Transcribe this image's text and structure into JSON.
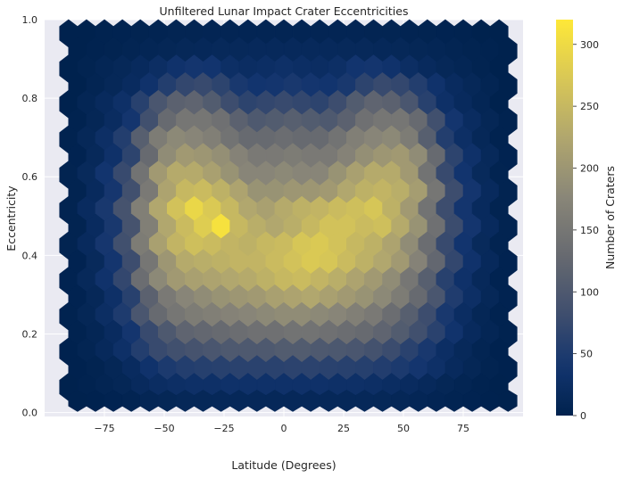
{
  "chart_data": {
    "type": "heatmap",
    "subtype": "hexbin",
    "title": "Unfiltered Lunar Impact Crater Eccentricities",
    "xlabel": "Latitude (Degrees)",
    "ylabel": "Eccentricity",
    "colorbar_label": "Number of Craters",
    "colormap": "cividis",
    "xlim": [
      -100,
      100
    ],
    "ylim": [
      -0.01,
      1.0
    ],
    "xticks": [
      -75,
      -50,
      -25,
      0,
      25,
      50,
      75
    ],
    "yticks": [
      0.0,
      0.2,
      0.4,
      0.6,
      0.8,
      1.0
    ],
    "ytick_labels": [
      "0.0",
      "0.2",
      "0.4",
      "0.6",
      "0.8",
      "1.0"
    ],
    "colorbar_range": [
      0,
      320
    ],
    "colorbar_ticks": [
      0,
      50,
      100,
      150,
      200,
      250,
      300
    ],
    "grid": true,
    "background": "#eaeaf2",
    "hex_data": {
      "x_centers": [
        -90,
        -82.5,
        -75,
        -67.5,
        -60,
        -52.5,
        -45,
        -37.5,
        -30,
        -22.5,
        -15,
        -7.5,
        0,
        7.5,
        15,
        22.5,
        30,
        37.5,
        45,
        52.5,
        60,
        67.5,
        75,
        82.5,
        90
      ],
      "y_centers": [
        0.965,
        0.92,
        0.875,
        0.83,
        0.785,
        0.74,
        0.695,
        0.65,
        0.605,
        0.56,
        0.515,
        0.47,
        0.425,
        0.38,
        0.335,
        0.29,
        0.245,
        0.2,
        0.155,
        0.11,
        0.065,
        0.03
      ],
      "counts": [
        [
          0,
          0,
          2,
          3,
          4,
          5,
          6,
          6,
          7,
          7,
          7,
          7,
          7,
          7,
          7,
          7,
          7,
          6,
          6,
          5,
          4,
          3,
          2,
          0,
          0
        ],
        [
          0,
          2,
          4,
          6,
          8,
          10,
          12,
          13,
          14,
          14,
          15,
          15,
          15,
          15,
          15,
          14,
          14,
          13,
          12,
          10,
          8,
          6,
          4,
          2,
          0
        ],
        [
          0,
          4,
          8,
          12,
          18,
          25,
          35,
          40,
          38,
          28,
          24,
          26,
          30,
          26,
          24,
          28,
          38,
          40,
          35,
          25,
          18,
          12,
          8,
          4,
          0
        ],
        [
          0,
          6,
          12,
          20,
          35,
          55,
          70,
          75,
          65,
          45,
          38,
          40,
          45,
          40,
          38,
          45,
          65,
          75,
          70,
          55,
          35,
          20,
          12,
          6,
          0
        ],
        [
          0,
          8,
          18,
          30,
          60,
          95,
          115,
          120,
          105,
          80,
          65,
          70,
          75,
          70,
          65,
          80,
          105,
          120,
          115,
          95,
          60,
          30,
          18,
          8,
          0
        ],
        [
          2,
          10,
          22,
          40,
          85,
          130,
          150,
          150,
          140,
          115,
          100,
          105,
          110,
          105,
          100,
          115,
          140,
          150,
          150,
          130,
          85,
          40,
          22,
          10,
          2
        ],
        [
          2,
          12,
          28,
          55,
          110,
          160,
          180,
          175,
          165,
          145,
          130,
          130,
          135,
          130,
          130,
          145,
          165,
          175,
          180,
          160,
          110,
          55,
          28,
          12,
          2
        ],
        [
          3,
          14,
          32,
          65,
          130,
          185,
          205,
          200,
          190,
          170,
          155,
          155,
          160,
          155,
          155,
          170,
          190,
          200,
          205,
          185,
          130,
          65,
          32,
          14,
          3
        ],
        [
          4,
          16,
          38,
          75,
          145,
          205,
          230,
          230,
          215,
          195,
          175,
          175,
          180,
          175,
          175,
          195,
          215,
          230,
          230,
          205,
          145,
          75,
          38,
          16,
          4
        ],
        [
          4,
          18,
          42,
          85,
          155,
          220,
          250,
          255,
          240,
          220,
          195,
          195,
          200,
          200,
          205,
          225,
          240,
          245,
          235,
          210,
          150,
          80,
          40,
          18,
          4
        ],
        [
          4,
          20,
          45,
          90,
          165,
          225,
          265,
          295,
          275,
          250,
          225,
          215,
          230,
          240,
          245,
          255,
          260,
          270,
          240,
          205,
          145,
          80,
          40,
          18,
          4
        ],
        [
          4,
          20,
          45,
          90,
          165,
          225,
          255,
          280,
          310,
          250,
          235,
          225,
          235,
          250,
          265,
          265,
          255,
          260,
          230,
          195,
          140,
          78,
          40,
          18,
          4
        ],
        [
          4,
          18,
          42,
          85,
          160,
          215,
          245,
          260,
          255,
          245,
          240,
          250,
          255,
          270,
          275,
          265,
          250,
          240,
          220,
          185,
          135,
          75,
          38,
          16,
          4
        ],
        [
          3,
          16,
          40,
          80,
          150,
          200,
          230,
          235,
          240,
          245,
          245,
          255,
          265,
          275,
          270,
          255,
          240,
          225,
          205,
          170,
          125,
          70,
          35,
          15,
          3
        ],
        [
          3,
          14,
          35,
          70,
          135,
          180,
          205,
          215,
          220,
          225,
          230,
          240,
          250,
          255,
          245,
          235,
          220,
          205,
          185,
          150,
          110,
          60,
          32,
          14,
          3
        ],
        [
          3,
          12,
          30,
          60,
          115,
          155,
          175,
          185,
          195,
          200,
          205,
          215,
          220,
          225,
          215,
          205,
          195,
          180,
          160,
          130,
          95,
          52,
          28,
          12,
          3
        ],
        [
          2,
          10,
          25,
          50,
          95,
          130,
          150,
          160,
          165,
          170,
          175,
          180,
          185,
          185,
          180,
          175,
          165,
          155,
          135,
          110,
          80,
          45,
          24,
          10,
          2
        ],
        [
          2,
          8,
          20,
          40,
          75,
          100,
          120,
          125,
          130,
          135,
          140,
          140,
          145,
          145,
          140,
          135,
          130,
          120,
          105,
          85,
          62,
          36,
          18,
          8,
          2
        ],
        [
          1,
          6,
          15,
          30,
          55,
          75,
          85,
          90,
          95,
          100,
          100,
          100,
          105,
          105,
          100,
          98,
          95,
          88,
          78,
          62,
          45,
          26,
          14,
          6,
          1
        ],
        [
          1,
          4,
          10,
          20,
          35,
          48,
          55,
          58,
          60,
          62,
          62,
          62,
          64,
          64,
          62,
          60,
          58,
          54,
          48,
          40,
          30,
          18,
          10,
          4,
          1
        ],
        [
          0,
          2,
          6,
          10,
          18,
          24,
          28,
          30,
          30,
          32,
          32,
          32,
          32,
          32,
          32,
          30,
          30,
          28,
          24,
          20,
          15,
          10,
          6,
          2,
          0
        ],
        [
          0,
          1,
          3,
          5,
          8,
          10,
          12,
          12,
          13,
          13,
          13,
          13,
          13,
          13,
          13,
          13,
          13,
          12,
          11,
          9,
          7,
          5,
          3,
          1,
          0
        ]
      ]
    }
  }
}
